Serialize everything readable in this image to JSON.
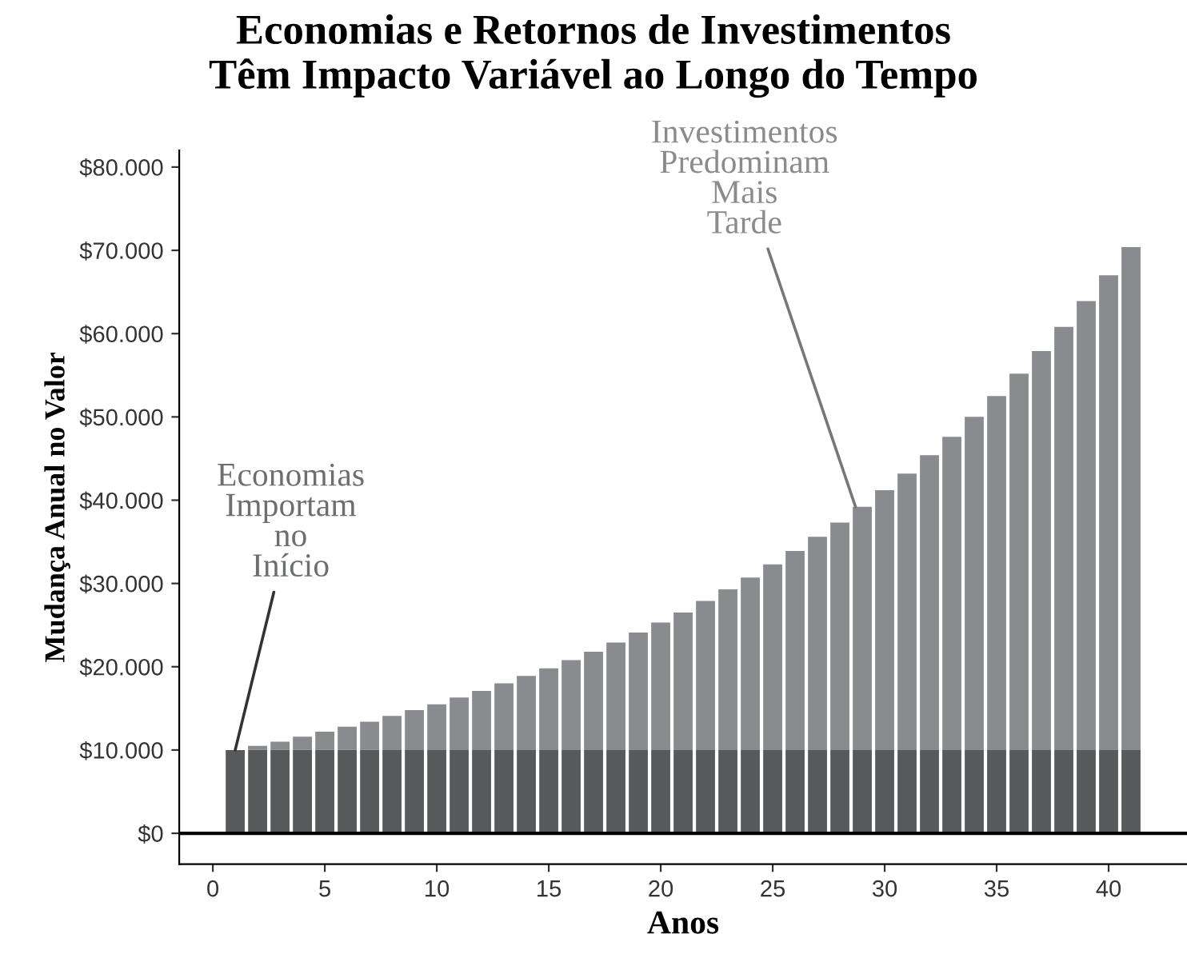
{
  "chart_data": {
    "type": "bar",
    "stacked": true,
    "title": "Economias e Retornos de Investimentos\nTêm Impacto Variável ao Longo do Tempo",
    "xlabel": "Anos",
    "ylabel": "Mudança Anual no Valor",
    "x": [
      1,
      2,
      3,
      4,
      5,
      6,
      7,
      8,
      9,
      10,
      11,
      12,
      13,
      14,
      15,
      16,
      17,
      18,
      19,
      20,
      21,
      22,
      23,
      24,
      25,
      26,
      27,
      28,
      29,
      30,
      31,
      32,
      33,
      34,
      35,
      36,
      37,
      38,
      39,
      40,
      41
    ],
    "series": [
      {
        "color": "#58595b",
        "values": [
          10000,
          10000,
          10000,
          10000,
          10000,
          10000,
          10000,
          10000,
          10000,
          10000,
          10000,
          10000,
          10000,
          10000,
          10000,
          10000,
          10000,
          10000,
          10000,
          10000,
          10000,
          10000,
          10000,
          10000,
          10000,
          10000,
          10000,
          10000,
          10000,
          10000,
          10000,
          10000,
          10000,
          10000,
          10000,
          10000,
          10000,
          10000,
          10000,
          10000,
          10000
        ]
      },
      {
        "color": "#8a8b8f",
        "values": [
          0,
          500,
          1000,
          1600,
          2200,
          2800,
          3400,
          4100,
          4800,
          5500,
          6300,
          7100,
          8000,
          8900,
          9800,
          10800,
          11800,
          12900,
          14100,
          15300,
          16500,
          17900,
          19300,
          20700,
          22300,
          23900,
          25600,
          27300,
          29200,
          31200,
          33200,
          35400,
          37600,
          40000,
          42500,
          45200,
          47900,
          50800,
          53900,
          57000,
          60400
        ]
      }
    ],
    "xlim": [
      -1.5,
      43.5
    ],
    "xticks": [
      0,
      5,
      10,
      15,
      20,
      25,
      30,
      35,
      40
    ],
    "ylim": [
      -3700,
      82000
    ],
    "yticks": [
      {
        "value": 0,
        "label": "$0"
      },
      {
        "value": 10000,
        "label": "$10.000"
      },
      {
        "value": 20000,
        "label": "$20.000"
      },
      {
        "value": 30000,
        "label": "$30.000"
      },
      {
        "value": 40000,
        "label": "$40.000"
      },
      {
        "value": 50000,
        "label": "$50.000"
      },
      {
        "value": 60000,
        "label": "$60.000"
      },
      {
        "value": 70000,
        "label": "$70.000"
      },
      {
        "value": 80000,
        "label": "$80.000"
      }
    ],
    "ref_lines": [
      {
        "axis": "y",
        "value": 0,
        "color": "#000000"
      }
    ],
    "annotations": [
      {
        "text": "Economias\nImportam\nno\nInício",
        "x": 1,
        "y": 10000
      },
      {
        "text": "Investimentos\nPredominam\nMais\nTarde",
        "x": 28.7,
        "y": 39200
      }
    ],
    "grid": false,
    "legend": false
  }
}
